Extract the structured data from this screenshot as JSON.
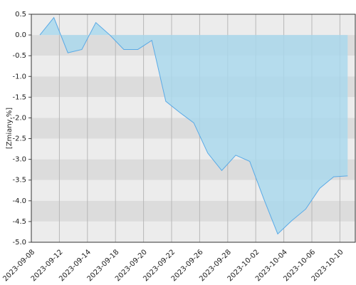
{
  "chart_data": {
    "type": "area",
    "y_label": "[Zmiany,%]",
    "xtick_labels": [
      "2023-09-08",
      "2023-09-12",
      "2023-09-14",
      "2023-09-18",
      "2023-09-20",
      "2023-09-22",
      "2023-09-26",
      "2023-09-28",
      "2023-10-02",
      "2023-10-04",
      "2023-10-06",
      "2023-10-10"
    ],
    "values": [
      0.0,
      0.42,
      -0.43,
      -0.35,
      0.3,
      0.0,
      -0.35,
      -0.35,
      -0.13,
      -1.6,
      -1.87,
      -2.12,
      -2.85,
      -3.27,
      -2.9,
      -3.05,
      -3.95,
      -4.8,
      -4.48,
      -4.2,
      -3.7,
      -3.42,
      -3.4
    ],
    "color": "#5aaae6",
    "fill": "#a8d8ee",
    "ylim": [
      -5.0,
      0.5
    ],
    "yticks": [
      0.5,
      {
        "value": 0,
        "label": "0.0"
      },
      -0.5,
      {
        "value": -1,
        "label": "-1.0"
      },
      -1.5,
      {
        "value": -2,
        "label": "-2.0"
      },
      -2.5,
      {
        "value": -3,
        "label": "-3.0"
      },
      -3.5,
      {
        "value": -4,
        "label": "-4.0"
      },
      -4.5,
      {
        "value": -5,
        "label": "-5.0"
      }
    ],
    "grid": true
  }
}
